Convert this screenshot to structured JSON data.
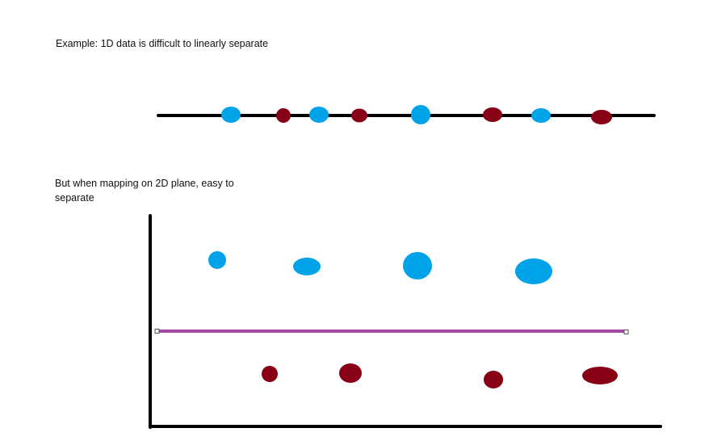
{
  "captions": {
    "top": "Example: 1D data is difficult to linearly separate",
    "bottom": "But when mapping on 2D plane, easy to separate"
  },
  "colors": {
    "axis": "#000000",
    "class_a": "#00a2e8",
    "class_b": "#880015",
    "separator": "#a349a4"
  },
  "one_d_points": [
    {
      "class": "class_a"
    },
    {
      "class": "class_b"
    },
    {
      "class": "class_a"
    },
    {
      "class": "class_b"
    },
    {
      "class": "class_a"
    },
    {
      "class": "class_b"
    },
    {
      "class": "class_a"
    },
    {
      "class": "class_b"
    }
  ],
  "two_d_points": {
    "upper": [
      "class_a",
      "class_a",
      "class_a",
      "class_a"
    ],
    "lower": [
      "class_b",
      "class_b",
      "class_b",
      "class_b"
    ]
  }
}
